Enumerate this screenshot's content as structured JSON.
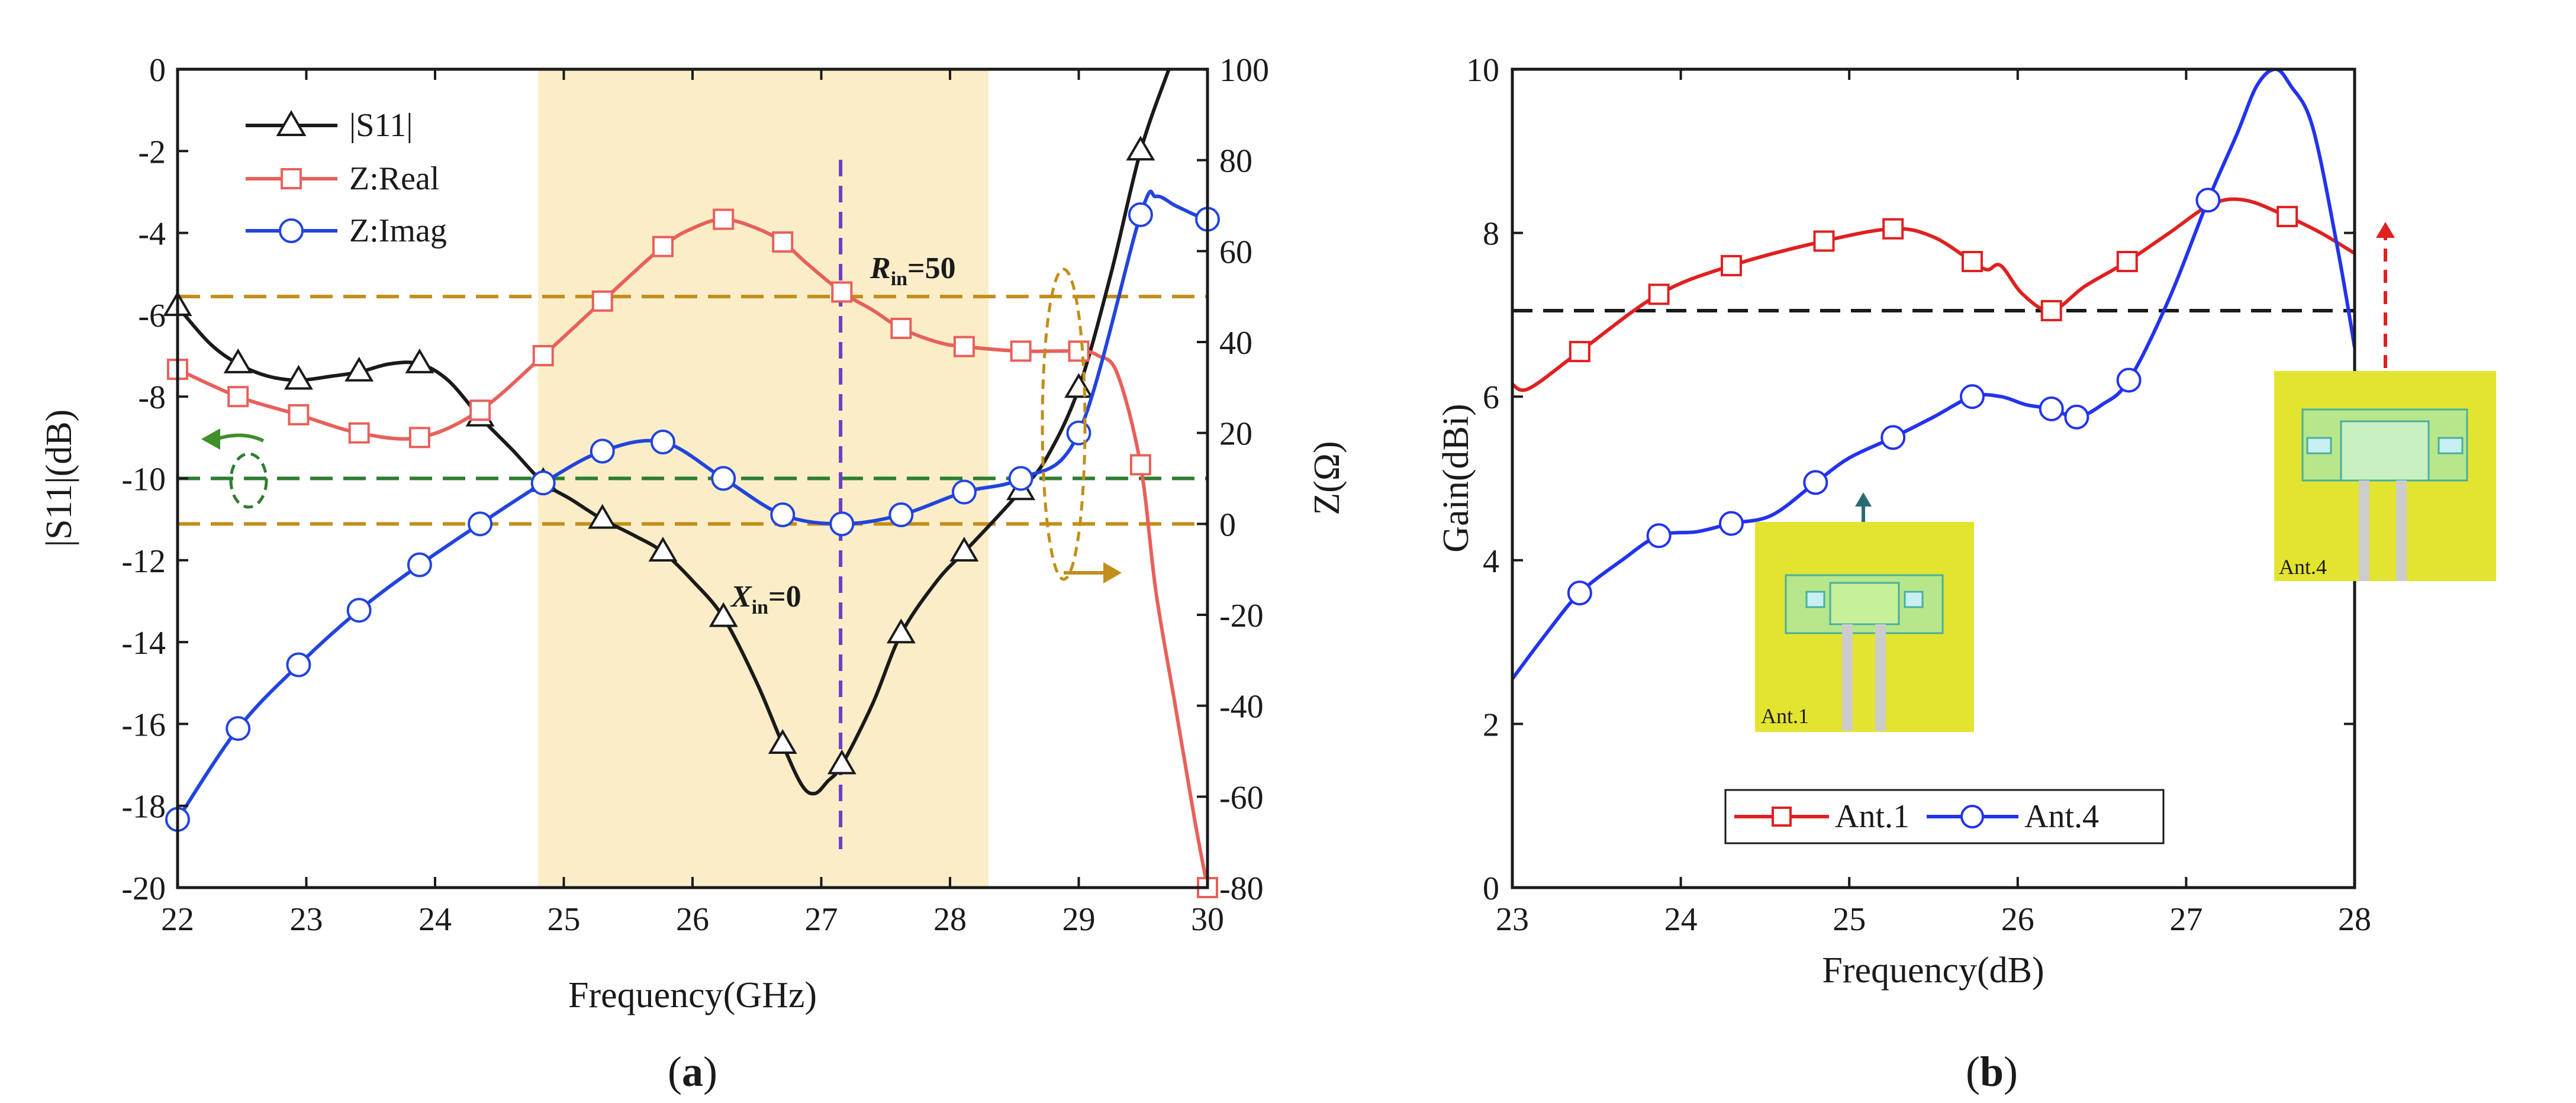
{
  "chart_data": [
    {
      "id": "a",
      "type": "line",
      "caption_label": "a",
      "xlabel": "Frequency(GHz)",
      "ylabel": "|S11|(dB)",
      "ylabel_right": "Z(Ω)",
      "xlim": [
        22,
        30
      ],
      "ylim": [
        -20,
        0
      ],
      "ylim_right": [
        -80,
        100
      ],
      "xticks": [
        "22",
        "23",
        "24",
        "25",
        "26",
        "27",
        "28",
        "29",
        "30"
      ],
      "yticks": [
        "0",
        "-2",
        "-4",
        "-6",
        "-8",
        "-10",
        "-12",
        "-14",
        "-16",
        "-18",
        "-20"
      ],
      "yticks_right": [
        "100",
        "80",
        "60",
        "40",
        "20",
        "0",
        "-20",
        "-40",
        "-60",
        "-80"
      ],
      "shaded_band": [
        24.8,
        28.3
      ],
      "vline_x": 27.15,
      "hline_s11": -10,
      "hline_real_z": 50,
      "hline_imag_z": 0,
      "annotations": {
        "rin_main": "R",
        "rin_sub": "in",
        "rin_val": "=50",
        "xin_main": "X",
        "xin_sub": "in",
        "xin_val": "=0"
      },
      "series": [
        {
          "name": "|S11|",
          "axis": "left",
          "color": "#1a1a1a",
          "marker": "triangle",
          "x": [
            22.0,
            22.25,
            22.47,
            22.7,
            22.94,
            23.2,
            23.41,
            23.65,
            23.88,
            24.1,
            24.35,
            24.6,
            24.84,
            25.05,
            25.3,
            25.55,
            25.77,
            26.0,
            26.24,
            26.5,
            26.7,
            26.85,
            26.95,
            27.05,
            27.16,
            27.4,
            27.62,
            27.9,
            28.11,
            28.35,
            28.55,
            28.75,
            29.0,
            29.25,
            29.48,
            29.7
          ],
          "y": [
            -5.8,
            -6.7,
            -7.2,
            -7.5,
            -7.6,
            -7.5,
            -7.4,
            -7.2,
            -7.2,
            -7.6,
            -8.5,
            -9.3,
            -10.1,
            -10.5,
            -11.0,
            -11.4,
            -11.8,
            -12.5,
            -13.4,
            -15.0,
            -16.5,
            -17.5,
            -17.7,
            -17.4,
            -17.0,
            -15.5,
            -13.8,
            -12.5,
            -11.8,
            -11.0,
            -10.3,
            -9.5,
            -7.8,
            -5.0,
            -2.0,
            0.0
          ],
          "marker_x": [
            22.0,
            22.47,
            22.94,
            23.41,
            23.88,
            24.35,
            24.84,
            25.3,
            25.77,
            26.24,
            26.7,
            27.16,
            27.62,
            28.11,
            28.55,
            29.0,
            29.48
          ]
        },
        {
          "name": "Z:Real",
          "axis": "right",
          "color": "#e8605a",
          "marker": "square",
          "x": [
            22.0,
            22.47,
            22.94,
            23.41,
            23.88,
            24.35,
            24.84,
            25.3,
            25.77,
            26.0,
            26.24,
            26.5,
            26.7,
            26.9,
            27.16,
            27.4,
            27.62,
            27.9,
            28.11,
            28.55,
            29.0,
            29.15,
            29.3,
            29.48,
            29.6,
            29.75,
            29.9,
            30.0
          ],
          "y": [
            34.0,
            28.0,
            24.0,
            20.0,
            19.0,
            25.0,
            37.0,
            49.0,
            61.0,
            65.0,
            67.0,
            65.0,
            62.0,
            57.0,
            51.0,
            47.0,
            43.0,
            40.0,
            39.0,
            38.0,
            38.0,
            37.0,
            33.0,
            13.0,
            -15.0,
            -40.0,
            -65.0,
            -80.0
          ],
          "marker_x": [
            22.0,
            22.47,
            22.94,
            23.41,
            23.88,
            24.35,
            24.84,
            25.3,
            25.77,
            26.24,
            26.7,
            27.16,
            27.62,
            28.11,
            28.55,
            29.0,
            29.48,
            30.0
          ]
        },
        {
          "name": "Z:Imag",
          "axis": "right",
          "color": "#2244dd",
          "marker": "circle",
          "x": [
            22.0,
            22.47,
            22.94,
            23.41,
            23.88,
            24.35,
            24.84,
            25.3,
            25.77,
            26.24,
            26.7,
            27.16,
            27.62,
            28.11,
            28.55,
            29.0,
            29.48,
            29.6,
            29.75,
            29.9,
            30.0
          ],
          "y": [
            -65.0,
            -45.0,
            -31.0,
            -19.0,
            -9.0,
            0.0,
            9.0,
            16.0,
            18.0,
            10.0,
            2.0,
            0.0,
            2.0,
            7.0,
            10.0,
            20.0,
            68.0,
            72.0,
            70.0,
            68.0,
            67.0
          ],
          "marker_x": [
            22.0,
            22.47,
            22.94,
            23.41,
            23.88,
            24.35,
            24.84,
            25.3,
            25.77,
            26.24,
            26.7,
            27.16,
            27.62,
            28.11,
            28.55,
            29.0,
            29.48,
            30.0
          ]
        }
      ]
    },
    {
      "id": "b",
      "type": "line",
      "caption_label": "b",
      "xlabel": "Frequency(dB)",
      "ylabel": "Gain(dBi)",
      "xlim": [
        23,
        28
      ],
      "ylim": [
        0,
        10
      ],
      "xticks": [
        "23",
        "24",
        "25",
        "26",
        "27",
        "28"
      ],
      "yticks": [
        "0",
        "2",
        "4",
        "6",
        "8",
        "10"
      ],
      "hline_y": 7.05,
      "insets": {
        "ant1": "Ant.1",
        "ant4": "Ant.4"
      },
      "series": [
        {
          "name": "Ant.1",
          "color": "#e02020",
          "marker": "square",
          "x": [
            23.0,
            23.1,
            23.4,
            23.87,
            24.3,
            24.85,
            25.26,
            25.5,
            25.73,
            25.82,
            25.9,
            26.03,
            26.2,
            26.4,
            26.65,
            26.9,
            27.15,
            27.35,
            27.6,
            27.8,
            28.0
          ],
          "y": [
            6.15,
            6.1,
            6.55,
            7.25,
            7.6,
            7.9,
            8.05,
            7.95,
            7.65,
            7.55,
            7.6,
            7.25,
            7.05,
            7.35,
            7.65,
            8.0,
            8.35,
            8.4,
            8.2,
            8.0,
            7.75
          ],
          "marker_x": [
            23.4,
            23.87,
            24.3,
            24.85,
            25.26,
            25.73,
            26.2,
            26.65,
            27.6
          ]
        },
        {
          "name": "Ant.4",
          "color": "#2233ee",
          "marker": "circle",
          "x": [
            23.0,
            23.2,
            23.4,
            23.65,
            23.87,
            24.1,
            24.3,
            24.54,
            24.8,
            25.0,
            25.26,
            25.5,
            25.73,
            25.9,
            26.05,
            26.2,
            26.35,
            26.5,
            26.66,
            26.9,
            27.13,
            27.3,
            27.42,
            27.53,
            27.62,
            27.75,
            27.9,
            28.0
          ],
          "y": [
            2.55,
            3.1,
            3.6,
            4.0,
            4.3,
            4.35,
            4.45,
            4.55,
            4.95,
            5.25,
            5.5,
            5.75,
            6.0,
            6.0,
            5.9,
            5.85,
            5.75,
            5.9,
            6.2,
            7.2,
            8.4,
            9.2,
            9.8,
            10.0,
            9.8,
            9.3,
            7.8,
            6.6
          ],
          "marker_x": [
            23.4,
            23.87,
            24.3,
            24.8,
            25.26,
            25.73,
            26.2,
            26.35,
            26.66,
            27.13
          ]
        }
      ]
    }
  ]
}
